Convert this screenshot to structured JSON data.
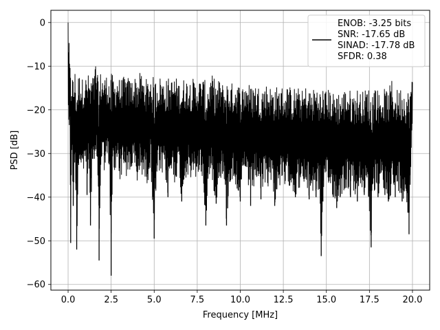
{
  "chart_data": {
    "type": "line",
    "title": "",
    "xlabel": "Frequency [MHz]",
    "ylabel": "PSD [dB]",
    "xlim": [
      -1,
      21
    ],
    "ylim": [
      -61.3,
      2.8
    ],
    "grid": true,
    "legend_position": "top-right",
    "x_ticks": [
      0.0,
      2.5,
      5.0,
      7.5,
      10.0,
      12.5,
      15.0,
      17.5,
      20.0
    ],
    "x_tick_labels": [
      "0.0",
      "2.5",
      "5.0",
      "7.5",
      "10.0",
      "12.5",
      "15.0",
      "17.5",
      "20.0"
    ],
    "y_ticks": [
      0,
      -10,
      -20,
      -30,
      -40,
      -50,
      -60
    ],
    "y_tick_labels": [
      "0",
      "−10",
      "−20",
      "−30",
      "−40",
      "−50",
      "−60"
    ],
    "legend_lines": [
      "ENOB: -3.25 bits",
      "SNR: -17.65 dB",
      "SINAD: -17.78 dB",
      "SFDR: 0.38"
    ],
    "series_color": "#000000",
    "series": [
      {
        "x": [
          0.0,
          0.02,
          0.05,
          0.1,
          0.15,
          0.2,
          0.25,
          0.3,
          0.4,
          0.5,
          0.6,
          0.7,
          0.8,
          0.9,
          1.0,
          1.1,
          1.2,
          1.3,
          1.4,
          1.5,
          1.6,
          1.7,
          1.8,
          1.9,
          2.0,
          2.1,
          2.2,
          2.3,
          2.4,
          2.5,
          2.6,
          2.7,
          2.8,
          2.9,
          3.0,
          3.2,
          3.4,
          3.6,
          3.8,
          4.0,
          4.2,
          4.4,
          4.6,
          4.8,
          5.0,
          5.2,
          5.4,
          5.6,
          5.8,
          6.0,
          6.2,
          6.4,
          6.6,
          6.8,
          7.0,
          7.2,
          7.4,
          7.6,
          7.8,
          8.0,
          8.2,
          8.4,
          8.6,
          8.8,
          9.0,
          9.2,
          9.4,
          9.6,
          9.8,
          10.0,
          10.2,
          10.4,
          10.6,
          10.8,
          11.0,
          11.2,
          11.4,
          11.6,
          11.8,
          12.0,
          12.2,
          12.4,
          12.6,
          12.8,
          13.0,
          13.2,
          13.4,
          13.6,
          13.8,
          14.0,
          14.2,
          14.4,
          14.6,
          14.7,
          14.8,
          15.0,
          15.2,
          15.4,
          15.6,
          15.8,
          16.0,
          16.2,
          16.4,
          16.6,
          16.8,
          17.0,
          17.2,
          17.4,
          17.6,
          17.8,
          18.0,
          18.2,
          18.4,
          18.6,
          18.8,
          19.0,
          19.2,
          19.4,
          19.6,
          19.8,
          20.0
        ],
        "upper": [
          0.0,
          -1.0,
          -4.0,
          -9.0,
          -11.0,
          -12.0,
          -11.5,
          -12.5,
          -11.0,
          -12.5,
          -12.0,
          -11.5,
          -13.0,
          -12.0,
          -12.5,
          -11.5,
          -12.0,
          -12.5,
          -11.5,
          -12.5,
          -8.5,
          -12.0,
          -12.5,
          -11.0,
          -12.0,
          -12.5,
          -11.5,
          -13.0,
          -12.5,
          -11.5,
          -12.0,
          -13.0,
          -12.5,
          -12.0,
          -13.0,
          -12.5,
          -12.0,
          -13.0,
          -12.5,
          -12.0,
          -11.5,
          -12.5,
          -13.0,
          -12.0,
          -12.5,
          -13.0,
          -12.0,
          -13.5,
          -12.5,
          -13.0,
          -12.0,
          -13.5,
          -13.0,
          -12.5,
          -13.0,
          -12.5,
          -13.5,
          -13.0,
          -12.5,
          -13.5,
          -13.0,
          -12.0,
          -13.5,
          -13.0,
          -14.0,
          -13.0,
          -13.5,
          -14.0,
          -13.0,
          -14.5,
          -14.0,
          -13.0,
          -14.5,
          -13.5,
          -14.5,
          -14.0,
          -14.5,
          -13.5,
          -15.0,
          -14.0,
          -15.0,
          -14.5,
          -15.0,
          -14.0,
          -15.5,
          -14.5,
          -15.0,
          -15.5,
          -14.5,
          -15.0,
          -15.5,
          -14.0,
          -15.0,
          -15.5,
          -14.5,
          -15.5,
          -15.0,
          -16.0,
          -15.0,
          -16.0,
          -15.5,
          -14.5,
          -15.5,
          -16.0,
          -15.0,
          -16.0,
          -15.5,
          -14.5,
          -16.0,
          -13.5,
          -15.5,
          -16.0,
          -15.0,
          -15.5,
          -13.0,
          -15.5,
          -15.0,
          -14.5,
          -15.5,
          -15.0,
          -13.0
        ],
        "lower": [
          -14.0,
          -24.0,
          -25.0,
          -26.0,
          -50.5,
          -31.0,
          -34.0,
          -42.0,
          -31.0,
          -52.0,
          -34.0,
          -33.0,
          -35.0,
          -36.0,
          -31.0,
          -39.5,
          -32.0,
          -46.5,
          -33.0,
          -36.0,
          -34.0,
          -32.0,
          -54.5,
          -35.0,
          -31.0,
          -34.0,
          -33.0,
          -32.0,
          -35.0,
          -58.0,
          -33.0,
          -36.0,
          -34.0,
          -31.0,
          -37.0,
          -33.0,
          -36.0,
          -35.0,
          -33.0,
          -38.0,
          -34.0,
          -36.0,
          -37.0,
          -33.0,
          -49.5,
          -34.0,
          -36.0,
          -35.0,
          -40.0,
          -35.0,
          -37.0,
          -34.0,
          -41.0,
          -36.0,
          -35.0,
          -37.5,
          -36.0,
          -35.0,
          -36.0,
          -46.5,
          -35.0,
          -37.0,
          -41.5,
          -36.0,
          -35.0,
          -46.5,
          -37.0,
          -36.5,
          -38.0,
          -41.0,
          -37.0,
          -36.0,
          -42.0,
          -38.0,
          -36.0,
          -40.5,
          -37.0,
          -38.0,
          -36.0,
          -42.0,
          -38.0,
          -37.5,
          -39.0,
          -37.0,
          -38.5,
          -40.0,
          -38.0,
          -39.0,
          -38.0,
          -40.5,
          -39.0,
          -40.0,
          -38.5,
          -53.5,
          -41.0,
          -38.0,
          -39.0,
          -40.0,
          -42.5,
          -40.0,
          -39.0,
          -38.0,
          -40.0,
          -39.0,
          -41.0,
          -38.0,
          -39.5,
          -38.0,
          -51.5,
          -39.0,
          -40.0,
          -38.0,
          -39.5,
          -41.0,
          -39.0,
          -40.0,
          -38.5,
          -41.0,
          -39.0,
          -48.5,
          -22.0
        ]
      }
    ]
  }
}
